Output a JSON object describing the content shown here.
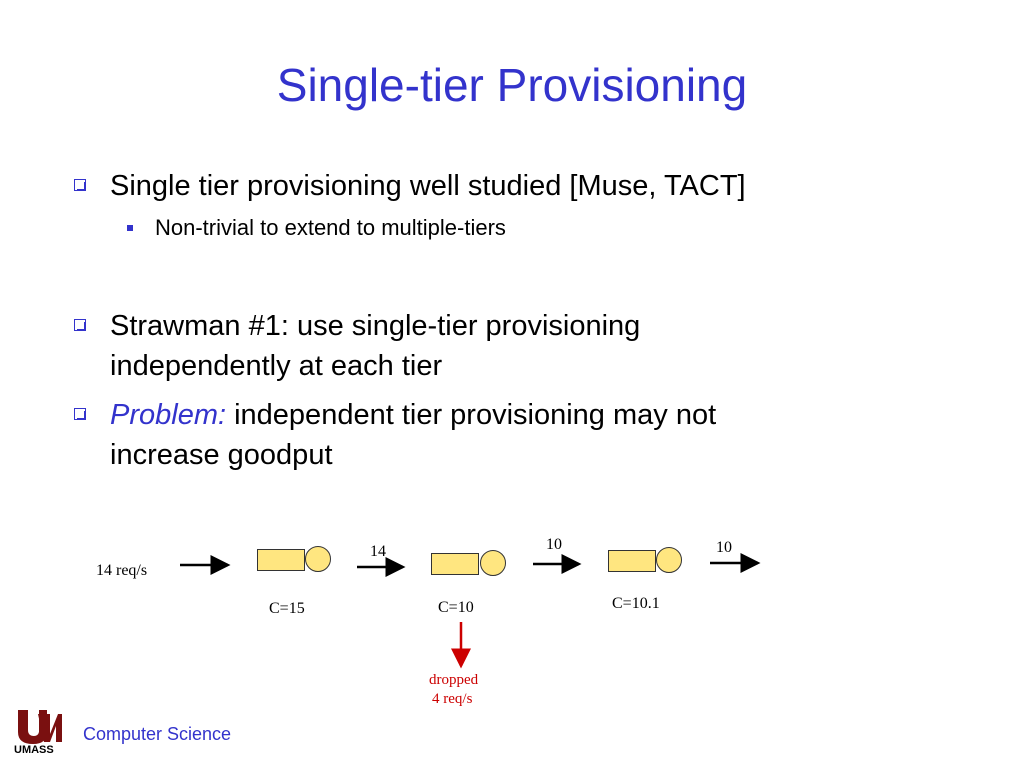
{
  "title": "Single-tier Provisioning",
  "bullets": [
    {
      "text": "Single tier provisioning well studied [Muse, TACT]"
    },
    {
      "text": "Non-trivial to extend to multiple-tiers"
    },
    {
      "text_line1": "Strawman #1:  use single-tier provisioning",
      "text_line2": "independently at each tier"
    },
    {
      "label": "Problem:",
      "text_line1": " independent tier provisioning may not",
      "text_line2": "increase goodput"
    }
  ],
  "diagram": {
    "input_label": "14 req/s",
    "tiers": [
      {
        "capacity": "C=15"
      },
      {
        "capacity": "C=10"
      },
      {
        "capacity": "C=10.1"
      }
    ],
    "flows": [
      "14",
      "10",
      "10"
    ],
    "dropped_line1": "dropped",
    "dropped_line2": "4 req/s",
    "colors": {
      "queue": "#ffe680",
      "dropped": "#cc0000",
      "accent": "#3333cc"
    }
  },
  "footer": {
    "logo_text": "UMASS",
    "text": "Computer Science"
  }
}
